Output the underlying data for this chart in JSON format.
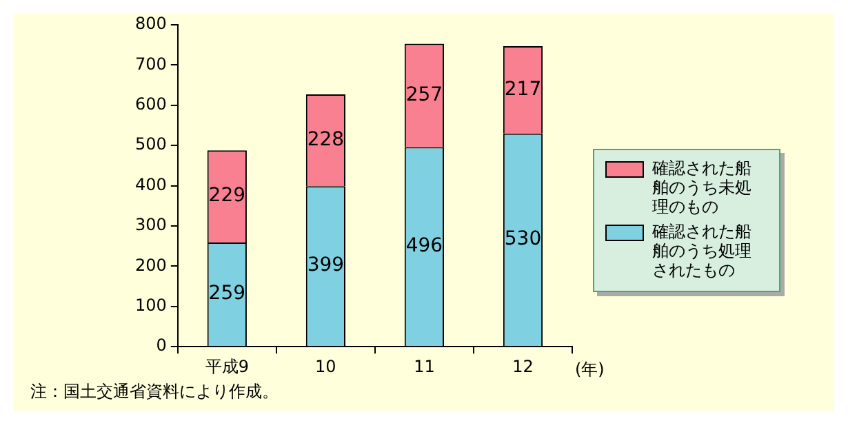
{
  "chart_data": {
    "type": "bar",
    "stacked": true,
    "categories": [
      "平成9",
      "10",
      "11",
      "12"
    ],
    "xlabel": "(年)",
    "series": [
      {
        "name": "確認された船舶のうち処理されたもの",
        "color": "#7fd0e0",
        "values": [
          259,
          399,
          496,
          530
        ]
      },
      {
        "name": "確認された船舶のうち未処理のもの",
        "color": "#f98090",
        "values": [
          229,
          228,
          257,
          217
        ]
      }
    ],
    "ylim": [
      0,
      800
    ],
    "yticks": [
      0,
      100,
      200,
      300,
      400,
      500,
      600,
      700,
      800
    ],
    "grid": false,
    "legend": "right",
    "data_labels": true,
    "annotations": [
      "注：国土交通省資料により作成。"
    ]
  }
}
